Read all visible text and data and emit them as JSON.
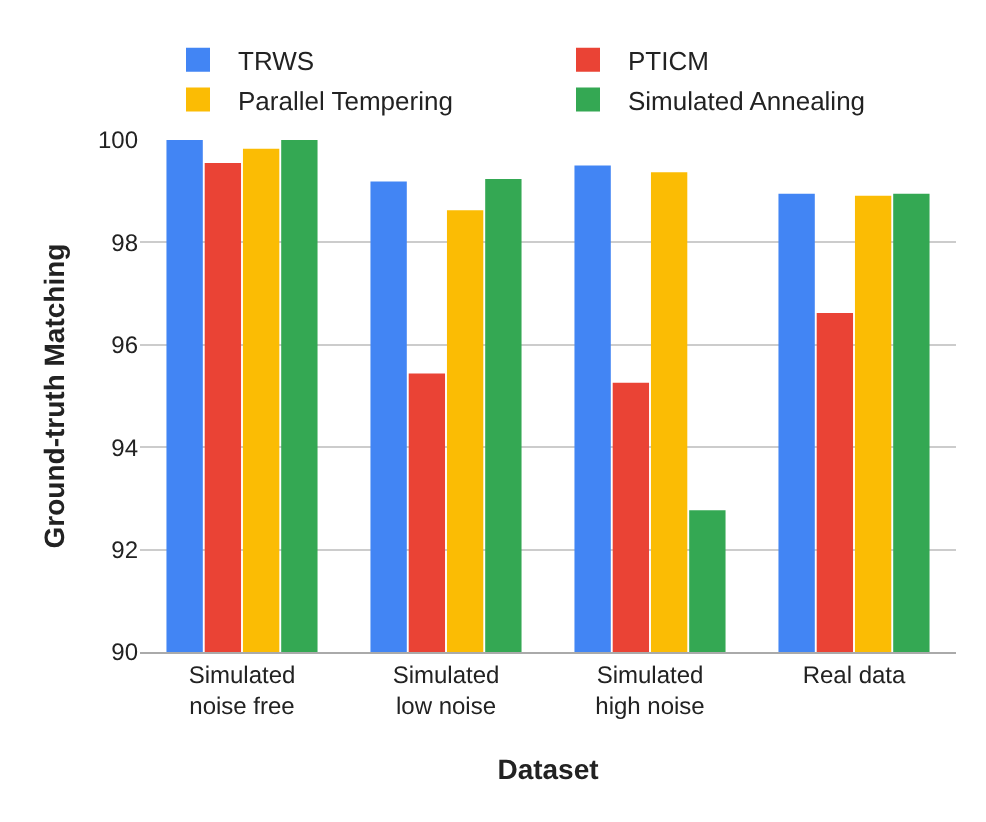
{
  "chart_data": {
    "type": "bar",
    "xlabel": "Dataset",
    "ylabel": "Ground-truth Matching",
    "categories": [
      "Simulated\nnoise free",
      "Simulated\nlow noise",
      "Simulated\nhigh noise",
      "Real data"
    ],
    "series": [
      {
        "name": "TRWS",
        "color": "#4285f4",
        "values": [
          100,
          99.19,
          99.5,
          98.95
        ]
      },
      {
        "name": "PTICM",
        "color": "#ea4335",
        "values": [
          99.55,
          95.44,
          95.26,
          96.62
        ]
      },
      {
        "name": "Parallel Tempering",
        "color": "#fbbc04",
        "values": [
          99.83,
          98.63,
          99.37,
          98.91
        ]
      },
      {
        "name": "Simulated Annealing",
        "color": "#34a853",
        "values": [
          100,
          99.24,
          92.77,
          98.95
        ]
      }
    ],
    "ylim": [
      90,
      100
    ],
    "yticks": [
      90,
      92,
      94,
      96,
      98,
      100
    ],
    "grid": "y",
    "legend": "top"
  }
}
